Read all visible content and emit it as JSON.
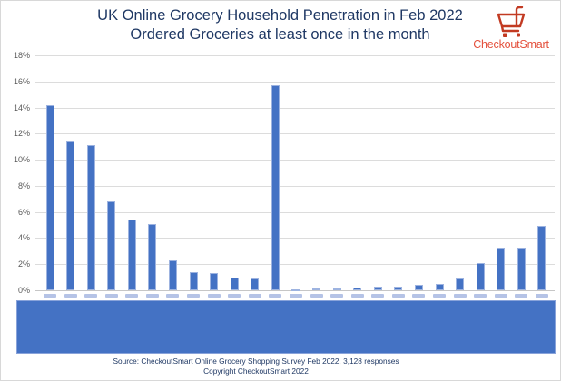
{
  "title": {
    "line1": "UK Online Grocery Household Penetration in Feb 2022",
    "line2": "Ordered Groceries at least once in the month"
  },
  "logo": {
    "brand": "CheckoutSmart",
    "cart_color": "#C23A22",
    "text_color": "#E4503C"
  },
  "chart_data": {
    "type": "bar",
    "title": "UK Online Grocery Household Penetration in Feb 2022",
    "subtitle": "Ordered Groceries at least once in the month",
    "xlabel": "",
    "ylabel": "",
    "ylim": [
      0,
      18
    ],
    "ytick_step": 2,
    "ytick_labels": [
      "18%",
      "16%",
      "14%",
      "12%",
      "10%",
      "8%",
      "6%",
      "4%",
      "2%",
      "0%"
    ],
    "grid": true,
    "legend": false,
    "bar_color": "#4472C4",
    "gridline_color": "#DCDCDC",
    "categories_hidden": true,
    "categories_note": "x-axis retailer labels are covered by a solid blue redaction rectangle",
    "values": [
      14.2,
      11.5,
      11.1,
      6.8,
      5.4,
      5.1,
      2.3,
      1.4,
      1.3,
      1.0,
      0.9,
      15.7,
      0.1,
      0.15,
      0.15,
      0.2,
      0.3,
      0.3,
      0.45,
      0.5,
      0.9,
      2.1,
      3.3,
      3.3,
      4.9
    ]
  },
  "redaction_band": {
    "color": "#4472C4"
  },
  "footer": {
    "source": "Source: CheckoutSmart Online Grocery Shopping Survey Feb 2022, 3,128 responses",
    "copyright": "Copyright CheckoutSmart 2022"
  }
}
